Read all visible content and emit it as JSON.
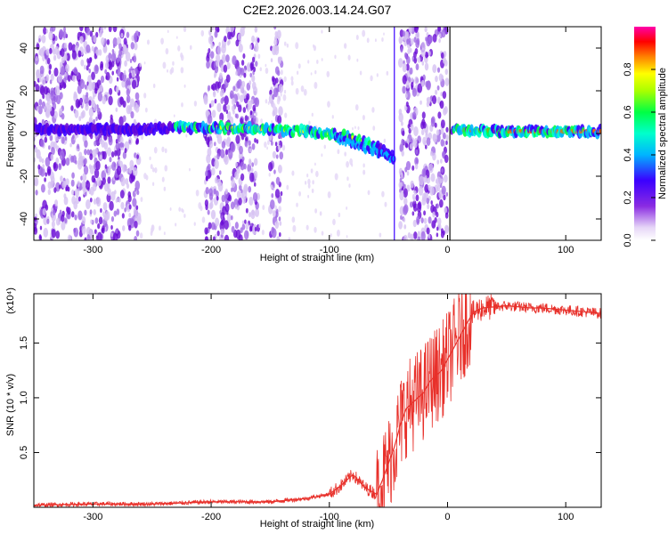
{
  "chart_data": [
    {
      "type": "heatmap",
      "title": "C2E2.2026.003.14.24.G07",
      "xlabel": "Height of straight line (km)",
      "ylabel": "Frequency (Hz)",
      "xlim": [
        -350,
        130
      ],
      "ylim": [
        -50,
        50
      ],
      "xticks": [
        -300,
        -200,
        -100,
        0,
        100
      ],
      "xtick_labels": [
        "-300",
        "-200",
        "-100",
        "0",
        "100"
      ],
      "yticks": [
        -40,
        -20,
        0,
        20,
        40
      ],
      "ytick_labels": [
        "-40",
        "-20",
        "0",
        "20",
        "40"
      ],
      "colorbar": {
        "label": "Normalized spectral amplitude",
        "range": [
          0,
          1
        ],
        "ticks": [
          0.0,
          0.2,
          0.4,
          0.6,
          0.8
        ],
        "tick_labels": [
          "0.0",
          "0.2",
          "0.4",
          "0.6",
          "0.8"
        ],
        "colors": [
          "#ffffff",
          "#e6d6f7",
          "#8a2be2",
          "#3b00ff",
          "#00e5ff",
          "#00ff44",
          "#ffff00",
          "#ff8000",
          "#ff0000",
          "#ff00aa"
        ]
      },
      "signal_track": [
        {
          "x": -350,
          "freq": 2
        },
        {
          "x": -250,
          "freq": 2
        },
        {
          "x": -200,
          "freq": 3
        },
        {
          "x": -150,
          "freq": 2
        },
        {
          "x": -120,
          "freq": 1
        },
        {
          "x": -100,
          "freq": 0
        },
        {
          "x": -80,
          "freq": -2
        },
        {
          "x": -60,
          "freq": -6
        },
        {
          "x": -45,
          "freq": -12
        },
        {
          "x": 0,
          "freq": 2
        },
        {
          "x": 50,
          "freq": 1
        },
        {
          "x": 130,
          "freq": 1
        }
      ],
      "grid": false
    },
    {
      "type": "line",
      "xlabel": "Height of straight line (km)",
      "ylabel": "SNR (10 * v/v)",
      "y_multiplier_label": "(x10⁴)",
      "xlim": [
        -350,
        130
      ],
      "ylim": [
        0,
        1.95
      ],
      "xticks": [
        -300,
        -200,
        -100,
        0,
        100
      ],
      "xtick_labels": [
        "-300",
        "-200",
        "-100",
        "0",
        "100"
      ],
      "yticks": [
        0.5,
        1.0,
        1.5
      ],
      "ytick_labels": [
        "0.5",
        "1.0",
        "1.5"
      ],
      "series": [
        {
          "color": "#e8302a",
          "x": [
            -350,
            -300,
            -250,
            -200,
            -150,
            -120,
            -100,
            -90,
            -80,
            -70,
            -60,
            -55,
            -50,
            -45,
            -40,
            -35,
            -30,
            -25,
            -20,
            -15,
            -10,
            -5,
            0,
            5,
            10,
            15,
            20,
            25,
            30,
            40,
            50,
            60,
            70,
            80,
            90,
            100,
            110,
            120,
            130
          ],
          "y": [
            0.02,
            0.03,
            0.03,
            0.05,
            0.05,
            0.08,
            0.12,
            0.2,
            0.3,
            0.18,
            0.12,
            0.25,
            0.4,
            0.55,
            0.75,
            0.9,
            0.95,
            1.0,
            1.05,
            1.15,
            1.2,
            1.25,
            1.35,
            1.45,
            1.55,
            1.65,
            1.75,
            1.8,
            1.82,
            1.83,
            1.84,
            1.83,
            1.82,
            1.82,
            1.81,
            1.8,
            1.79,
            1.78,
            1.77
          ]
        }
      ]
    }
  ]
}
